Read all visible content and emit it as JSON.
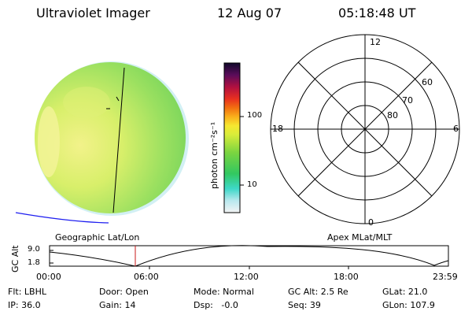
{
  "header": {
    "instrument": "Ultraviolet Imager",
    "date": "12 Aug 07",
    "time": "05:18:48 UT"
  },
  "colorbar": {
    "unit_label": "photon cm⁻²s⁻¹",
    "ticks": [
      "100",
      "10"
    ]
  },
  "polar_plot": {
    "mlt_labels": [
      "12",
      "18",
      "6",
      "0"
    ],
    "mlat_labels": [
      "60",
      "70",
      "80"
    ],
    "caption": "Apex MLat/MLT"
  },
  "image_panel": {
    "caption": "Geographic Lat/Lon"
  },
  "altitude_plot": {
    "axis_label": "GC Alt",
    "y_ticks": [
      "9.0",
      "1.8"
    ],
    "x_ticks": [
      "00:00",
      "06:00",
      "12:00",
      "18:00",
      "23:59"
    ]
  },
  "info": {
    "filter": "Flt: LBHL",
    "ip": "IP: 36.0",
    "door": "Door: Open",
    "gain": "Gain: 14",
    "mode": "Mode: Normal",
    "dsp": "Dsp:   -0.0",
    "gc_alt": "GC Alt: 2.5 Re",
    "seq": "Seq: 39",
    "glat": "GLat: 21.0",
    "glon": "GLon: 107.9"
  }
}
